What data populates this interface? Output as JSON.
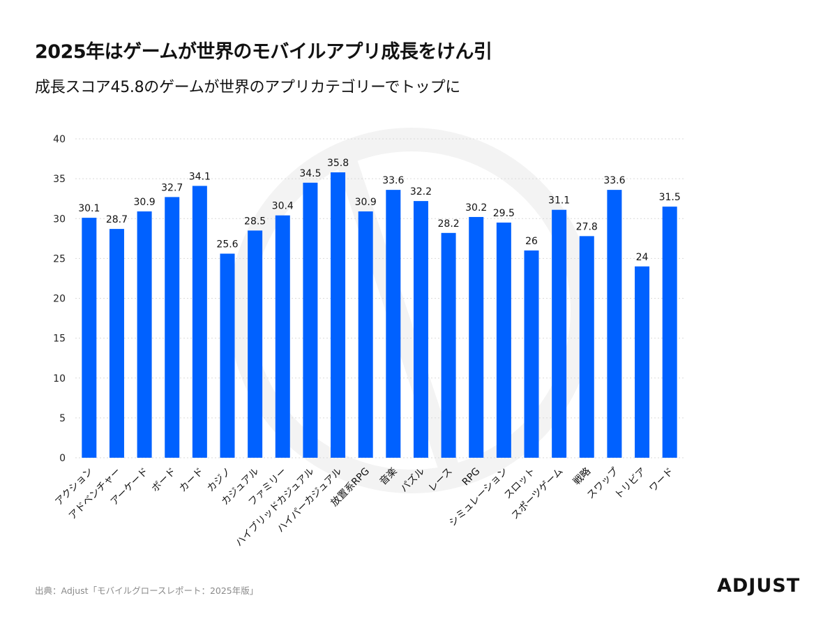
{
  "title": "2025年はゲームが世界のモバイルアプリ成長をけん引",
  "subtitle": "成長スコア45.8のゲームが世界のアプリカテゴリーでトップに",
  "source": "出典：Adjust「モバイルグロースレポート：2025年版」",
  "brand": "ADJUST",
  "colors": {
    "bar": "#0061ff",
    "grid": "#d9d9d9",
    "watermark": "#f3f3f3"
  },
  "chart_data": {
    "type": "bar",
    "categories": [
      "アクション",
      "アドベンチャー",
      "アーケード",
      "ボード",
      "カード",
      "カジノ",
      "カジュアル",
      "ファミリー",
      "ハイブリッドカジュアル",
      "ハイパーカジュアル",
      "放置系RPG",
      "音楽",
      "パズル",
      "レース",
      "RPG",
      "シミュレーション",
      "スロット",
      "スポーツゲーム",
      "戦略",
      "スワップ",
      "トリビア",
      "ワード"
    ],
    "values": [
      30.1,
      28.7,
      30.9,
      32.7,
      34.1,
      25.6,
      28.5,
      30.4,
      34.5,
      35.8,
      30.9,
      33.6,
      32.2,
      28.2,
      30.2,
      29.5,
      26,
      31.1,
      27.8,
      33.6,
      24,
      31.5
    ],
    "value_labels": [
      "30.1",
      "28.7",
      "30.9",
      "32.7",
      "34.1",
      "25.6",
      "28.5",
      "30.4",
      "34.5",
      "35.8",
      "30.9",
      "33.6",
      "32.2",
      "28.2",
      "30.2",
      "29.5",
      "26",
      "31.1",
      "27.8",
      "33.6",
      "24",
      "31.5"
    ],
    "yticks": [
      "0",
      "5",
      "10",
      "15",
      "20",
      "25",
      "30",
      "35",
      "40"
    ],
    "ylim": [
      0,
      40
    ],
    "grid": true,
    "title": "",
    "xlabel": "",
    "ylabel": ""
  }
}
